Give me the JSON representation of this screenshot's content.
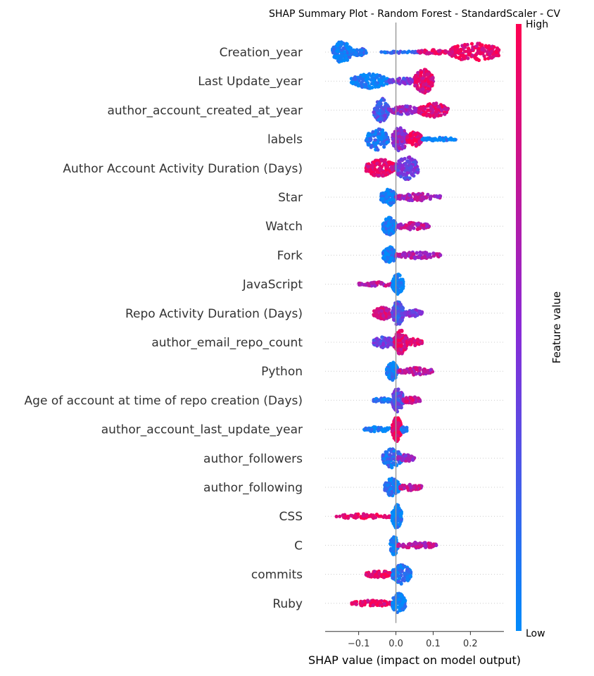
{
  "chart_data": {
    "type": "scatter",
    "subtype": "shap-beeswarm",
    "title": "SHAP Summary Plot - Random Forest - StandardScaler - CV",
    "xlabel": "SHAP value (impact on model output)",
    "xlim": [
      -0.19,
      0.29
    ],
    "xticks": [
      -0.1,
      0.0,
      0.1,
      0.2
    ],
    "xtick_labels": [
      "−0.1",
      "0.0",
      "0.1",
      "0.2"
    ],
    "colorbar": {
      "label": "Feature value",
      "high_label": "High",
      "low_label": "Low",
      "low_color": "#008bfb",
      "high_color": "#ff0051"
    },
    "features": [
      {
        "name": "Creation_year",
        "clusters": [
          {
            "min": -0.17,
            "max": -0.12,
            "c": 0.05,
            "h": 0.9,
            "n": 150
          },
          {
            "min": -0.12,
            "max": -0.08,
            "c": 0.15,
            "h": 0.35,
            "n": 40
          },
          {
            "min": -0.04,
            "max": 0.06,
            "c": 0.15,
            "h": 0.08,
            "n": 30
          },
          {
            "min": 0.06,
            "max": 0.14,
            "c": 0.9,
            "h": 0.2,
            "n": 45
          },
          {
            "min": 0.14,
            "max": 0.28,
            "c": 0.92,
            "h": 0.75,
            "n": 170
          }
        ]
      },
      {
        "name": "Last Update_year",
        "clusters": [
          {
            "min": -0.12,
            "max": -0.02,
            "c": 0.05,
            "h": 0.6,
            "n": 130
          },
          {
            "min": -0.02,
            "max": 0.06,
            "c": 0.4,
            "h": 0.25,
            "n": 60
          },
          {
            "min": 0.05,
            "max": 0.1,
            "c": 0.85,
            "h": 1.0,
            "n": 140
          }
        ]
      },
      {
        "name": "author_account_created_at_year",
        "clusters": [
          {
            "min": -0.06,
            "max": -0.02,
            "c": 0.25,
            "h": 1.0,
            "n": 120
          },
          {
            "min": -0.02,
            "max": 0.06,
            "c": 0.55,
            "h": 0.35,
            "n": 80
          },
          {
            "min": 0.06,
            "max": 0.14,
            "c": 0.85,
            "h": 0.6,
            "n": 120
          }
        ]
      },
      {
        "name": "labels",
        "clusters": [
          {
            "min": -0.08,
            "max": -0.02,
            "c": 0.1,
            "h": 0.9,
            "n": 110
          },
          {
            "min": -0.01,
            "max": 0.03,
            "c": 0.55,
            "h": 1.0,
            "n": 100
          },
          {
            "min": 0.03,
            "max": 0.07,
            "c": 0.92,
            "h": 0.6,
            "n": 90
          },
          {
            "min": 0.07,
            "max": 0.16,
            "c": 0.05,
            "h": 0.15,
            "n": 50
          }
        ]
      },
      {
        "name": "Author Account Activity Duration (Days)",
        "clusters": [
          {
            "min": -0.08,
            "max": 0.0,
            "c": 0.88,
            "h": 0.75,
            "n": 150
          },
          {
            "min": 0.0,
            "max": 0.06,
            "c": 0.4,
            "h": 1.0,
            "n": 120
          }
        ]
      },
      {
        "name": "Star",
        "clusters": [
          {
            "min": -0.04,
            "max": 0.0,
            "c": 0.05,
            "h": 0.7,
            "n": 110
          },
          {
            "min": 0.0,
            "max": 0.12,
            "c": 0.65,
            "h": 0.3,
            "n": 80
          }
        ]
      },
      {
        "name": "Watch",
        "clusters": [
          {
            "min": -0.035,
            "max": 0.0,
            "c": 0.05,
            "h": 0.75,
            "n": 120
          },
          {
            "min": 0.0,
            "max": 0.09,
            "c": 0.7,
            "h": 0.3,
            "n": 80
          }
        ]
      },
      {
        "name": "Fork",
        "clusters": [
          {
            "min": -0.035,
            "max": 0.0,
            "c": 0.05,
            "h": 0.7,
            "n": 110
          },
          {
            "min": 0.0,
            "max": 0.12,
            "c": 0.65,
            "h": 0.28,
            "n": 80
          }
        ]
      },
      {
        "name": "JavaScript",
        "clusters": [
          {
            "min": -0.1,
            "max": -0.01,
            "c": 0.7,
            "h": 0.2,
            "n": 50
          },
          {
            "min": -0.01,
            "max": 0.02,
            "c": 0.03,
            "h": 0.85,
            "n": 110
          }
        ]
      },
      {
        "name": "Repo Activity Duration (Days)",
        "clusters": [
          {
            "min": -0.06,
            "max": -0.01,
            "c": 0.75,
            "h": 0.5,
            "n": 90
          },
          {
            "min": -0.01,
            "max": 0.02,
            "c": 0.3,
            "h": 1.0,
            "n": 100
          },
          {
            "min": 0.02,
            "max": 0.07,
            "c": 0.45,
            "h": 0.3,
            "n": 50
          }
        ]
      },
      {
        "name": "author_email_repo_count",
        "clusters": [
          {
            "min": -0.06,
            "max": -0.005,
            "c": 0.35,
            "h": 0.45,
            "n": 80
          },
          {
            "min": -0.005,
            "max": 0.03,
            "c": 0.85,
            "h": 1.0,
            "n": 130
          },
          {
            "min": 0.03,
            "max": 0.07,
            "c": 0.88,
            "h": 0.3,
            "n": 50
          }
        ]
      },
      {
        "name": "Python",
        "clusters": [
          {
            "min": -0.025,
            "max": 0.005,
            "c": 0.05,
            "h": 0.75,
            "n": 110
          },
          {
            "min": 0.005,
            "max": 0.1,
            "c": 0.7,
            "h": 0.3,
            "n": 80
          }
        ]
      },
      {
        "name": "Age of account at time of repo creation (Days)",
        "clusters": [
          {
            "min": -0.06,
            "max": -0.01,
            "c": 0.1,
            "h": 0.2,
            "n": 40
          },
          {
            "min": -0.01,
            "max": 0.02,
            "c": 0.35,
            "h": 1.0,
            "n": 120
          },
          {
            "min": 0.02,
            "max": 0.065,
            "c": 0.8,
            "h": 0.3,
            "n": 50
          }
        ]
      },
      {
        "name": "author_account_last_update_year",
        "clusters": [
          {
            "min": -0.085,
            "max": -0.01,
            "c": 0.03,
            "h": 0.2,
            "n": 50
          },
          {
            "min": -0.01,
            "max": 0.015,
            "c": 0.95,
            "h": 1.0,
            "n": 150
          },
          {
            "min": 0.015,
            "max": 0.03,
            "c": 0.05,
            "h": 0.3,
            "n": 30
          }
        ]
      },
      {
        "name": "author_followers",
        "clusters": [
          {
            "min": -0.035,
            "max": 0.015,
            "c": 0.15,
            "h": 0.8,
            "n": 110
          },
          {
            "min": 0.0,
            "max": 0.05,
            "c": 0.6,
            "h": 0.3,
            "n": 50
          }
        ]
      },
      {
        "name": "author_following",
        "clusters": [
          {
            "min": -0.03,
            "max": 0.01,
            "c": 0.1,
            "h": 0.75,
            "n": 110
          },
          {
            "min": 0.01,
            "max": 0.07,
            "c": 0.75,
            "h": 0.28,
            "n": 60
          }
        ]
      },
      {
        "name": "CSS",
        "clusters": [
          {
            "min": -0.16,
            "max": -0.01,
            "c": 0.95,
            "h": 0.2,
            "n": 60
          },
          {
            "min": -0.01,
            "max": 0.015,
            "c": 0.03,
            "h": 1.0,
            "n": 120
          }
        ]
      },
      {
        "name": "C",
        "clusters": [
          {
            "min": -0.015,
            "max": 0.005,
            "c": 0.03,
            "h": 0.8,
            "n": 90
          },
          {
            "min": 0.005,
            "max": 0.11,
            "c": 0.7,
            "h": 0.25,
            "n": 70
          }
        ]
      },
      {
        "name": "commits",
        "clusters": [
          {
            "min": -0.08,
            "max": -0.01,
            "c": 0.92,
            "h": 0.28,
            "n": 80
          },
          {
            "min": -0.01,
            "max": 0.04,
            "c": 0.1,
            "h": 0.8,
            "n": 120
          }
        ]
      },
      {
        "name": "Ruby",
        "clusters": [
          {
            "min": -0.12,
            "max": -0.01,
            "c": 0.92,
            "h": 0.25,
            "n": 70
          },
          {
            "min": -0.01,
            "max": 0.025,
            "c": 0.05,
            "h": 0.85,
            "n": 110
          }
        ]
      }
    ]
  }
}
